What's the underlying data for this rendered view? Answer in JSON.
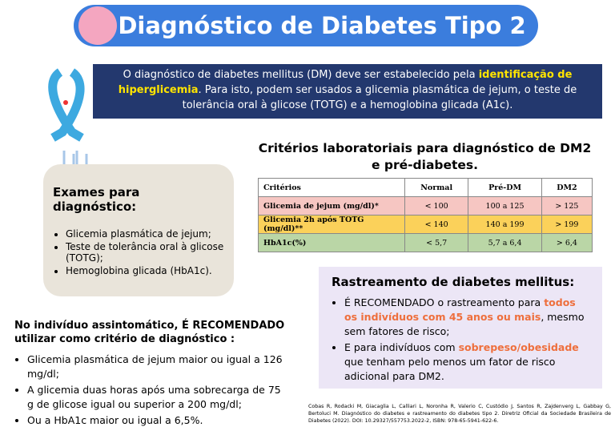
{
  "header": {
    "title": "Diagnóstico de Diabetes Tipo 2"
  },
  "intro": {
    "before": "O diagnóstico de diabetes mellitus (DM) deve ser estabelecido pela ",
    "highlight": "identificação de hiperglicemia",
    "after": ". Para isto, podem ser usados a glicemia plasmática de jejum, o teste de tolerância oral à glicose (TOTG) e a hemoglobina glicada (A1c)."
  },
  "table": {
    "title": "Critérios laboratoriais para diagnóstico de DM2 e pré-diabetes.",
    "columns": [
      "Critérios",
      "Normal",
      "Pré-DM",
      "DM2"
    ],
    "rows": [
      [
        "Glicemia de jejum (mg/dl)*",
        "< 100",
        "100 a 125",
        "> 125"
      ],
      [
        "Glicemia 2h após TOTG (mg/dl)**",
        "< 140",
        "140 a 199",
        "> 199"
      ],
      [
        "HbA1c(%)",
        "< 5,7",
        "5,7 a 6,4",
        "> 6,4"
      ]
    ]
  },
  "exams": {
    "title": "Exames para diagnóstico:",
    "items": [
      "Glicemia plasmática de jejum;",
      "Teste de tolerância oral à glicose (TOTG);",
      "Hemoglobina glicada (HbA1c)."
    ]
  },
  "screening": {
    "title": "Rastreamento de diabetes mellitus:",
    "items": [
      {
        "before": "É RECOMENDADO o rastreamento para ",
        "highlight": "todos os indivíduos com 45 anos ou mais",
        "after": ", mesmo sem fatores de risco;"
      },
      {
        "before": "E para indivíduos com ",
        "highlight": "sobrepeso/obesidade",
        "after": " que tenham pelo menos um fator de risco adicional para DM2."
      }
    ]
  },
  "asymptomatic": {
    "title": "No indivíduo assintomático, É RECOMENDADO utilizar como critério de diagnóstico :",
    "items": [
      "Glicemia plasmática de jejum maior ou igual a 126 mg/dl;",
      "A glicemia duas horas após uma sobrecarga de 75 g de glicose igual ou superior a 200 mg/dl;",
      "Ou a HbA1c maior ou igual a 6,5%."
    ]
  },
  "reference": "Cobas R, Rodacki M, Giacaglia L, Calliari L, Noronha R, Valerio C, Custódio J, Santos R, Zajdenverg L, Gabbay G, Bertoluci M. Diagnóstico do diabetes e rastreamento do diabetes tipo 2. Diretriz Oficial da Sociedade Brasileira de Diabetes (2022). DOI: 10.29327/557753.2022-2, ISBN: 978-65-5941-622-6."
}
